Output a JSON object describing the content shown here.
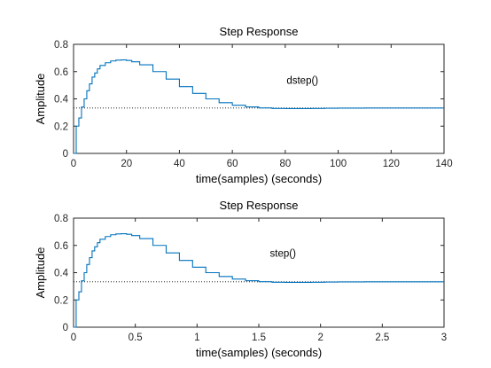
{
  "colors": {
    "response": "#0072bd",
    "steady": "#000000",
    "axes": "#262626"
  },
  "chart_data": [
    {
      "type": "line",
      "title": "Step Response",
      "xlabel": "time(samples) (seconds)",
      "ylabel": "Amplitude",
      "annotation": "dstep()",
      "xlim": [
        0,
        140
      ],
      "ylim": [
        0,
        0.8
      ],
      "xticks": [
        0,
        20,
        40,
        60,
        80,
        100,
        120,
        140
      ],
      "xtick_labels": [
        "0",
        "20",
        "40",
        "60",
        "80",
        "100",
        "120",
        "140"
      ],
      "yticks": [
        0,
        0.2,
        0.4,
        0.6,
        0.8
      ],
      "ytick_labels": [
        "0",
        "0.2",
        "0.4",
        "0.6",
        "0.8"
      ],
      "steady_state": 0.333,
      "series": [
        {
          "style": "stairs",
          "x": [
            0,
            1,
            2,
            3,
            4,
            5,
            6,
            7,
            8,
            9,
            10,
            12,
            14,
            16,
            18,
            20,
            22,
            25,
            30,
            35,
            40,
            45,
            50,
            55,
            60,
            65,
            70,
            75,
            80,
            85,
            90,
            95,
            100,
            110,
            120,
            130,
            140
          ],
          "y": [
            0,
            0.2,
            0.26,
            0.34,
            0.4,
            0.46,
            0.51,
            0.56,
            0.59,
            0.62,
            0.645,
            0.665,
            0.678,
            0.684,
            0.686,
            0.682,
            0.672,
            0.65,
            0.6,
            0.545,
            0.49,
            0.44,
            0.4,
            0.372,
            0.353,
            0.341,
            0.334,
            0.33,
            0.329,
            0.329,
            0.33,
            0.331,
            0.332,
            0.333,
            0.333,
            0.333,
            0.333
          ]
        }
      ]
    },
    {
      "type": "line",
      "title": "Step Response",
      "xlabel": "time(samples) (seconds)",
      "ylabel": "Amplitude",
      "annotation": "step()",
      "xlim": [
        0,
        3
      ],
      "ylim": [
        0,
        0.8
      ],
      "xticks": [
        0,
        0.5,
        1,
        1.5,
        2,
        2.5,
        3
      ],
      "xtick_labels": [
        "0",
        "0.5",
        "1",
        "1.5",
        "2",
        "2.5",
        "3"
      ],
      "yticks": [
        0,
        0.2,
        0.4,
        0.6,
        0.8
      ],
      "ytick_labels": [
        "0",
        "0.2",
        "0.4",
        "0.6",
        "0.8"
      ],
      "steady_state": 0.333,
      "series": [
        {
          "style": "stairs",
          "x": [
            0,
            0.021,
            0.043,
            0.064,
            0.086,
            0.107,
            0.129,
            0.15,
            0.171,
            0.193,
            0.214,
            0.257,
            0.3,
            0.343,
            0.386,
            0.429,
            0.471,
            0.536,
            0.643,
            0.75,
            0.857,
            0.964,
            1.071,
            1.179,
            1.286,
            1.393,
            1.5,
            1.607,
            1.714,
            1.821,
            1.929,
            2.036,
            2.143,
            2.357,
            2.571,
            2.786,
            3
          ],
          "y": [
            0,
            0.2,
            0.26,
            0.34,
            0.4,
            0.46,
            0.51,
            0.56,
            0.59,
            0.62,
            0.645,
            0.665,
            0.678,
            0.684,
            0.686,
            0.682,
            0.672,
            0.65,
            0.6,
            0.545,
            0.49,
            0.44,
            0.4,
            0.372,
            0.353,
            0.341,
            0.334,
            0.33,
            0.329,
            0.329,
            0.33,
            0.331,
            0.332,
            0.333,
            0.333,
            0.333,
            0.333
          ]
        }
      ]
    }
  ]
}
